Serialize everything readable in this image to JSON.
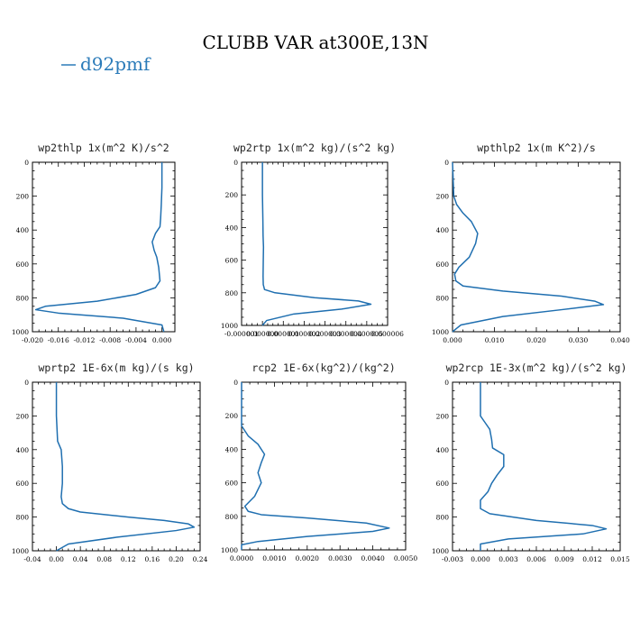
{
  "figure": {
    "title": "CLUBB VAR at300E,13N",
    "legend": [
      {
        "name": "d92pmf",
        "color": "#2b7bb9"
      }
    ]
  },
  "chart_data": [
    {
      "type": "line",
      "title": "wp2thlp   1x(m^2 K)/s^2",
      "xlim": [
        -0.02,
        0.002
      ],
      "ylim": [
        1000,
        0
      ],
      "xticks": [
        -0.02,
        -0.016,
        -0.012,
        -0.008,
        -0.004,
        0.0
      ],
      "xtick_labels": [
        "-0.020",
        "-0.016",
        "-0.012",
        "-0.008",
        "-0.004",
        "0.000"
      ],
      "yticks": [
        0,
        200,
        400,
        600,
        800,
        1000
      ],
      "ytick_labels": [
        "0",
        "200",
        "400",
        "600",
        "800",
        "1000"
      ],
      "series": [
        {
          "name": "d92pmf",
          "x": [
            0.0,
            0.0,
            -0.0001,
            -0.0002,
            -0.0003,
            -0.001,
            -0.0015,
            -0.0012,
            -0.0008,
            -0.0005,
            -0.0003,
            -0.001,
            -0.004,
            -0.01,
            -0.018,
            -0.0195,
            -0.016,
            -0.006,
            0.0,
            0.0003
          ],
          "y": [
            0,
            150,
            250,
            330,
            380,
            420,
            470,
            520,
            560,
            620,
            700,
            740,
            780,
            820,
            850,
            870,
            890,
            920,
            960,
            1000
          ]
        }
      ]
    },
    {
      "type": "line",
      "title": "wp2rtp   1x(m^2 kg)/(s^2 kg)",
      "xlim": [
        -1e-06,
        6e-06
      ],
      "ylim": [
        1000,
        0
      ],
      "xticks": [
        -1e-06,
        0.0,
        1e-06,
        2e-06,
        3e-06,
        4e-06,
        5e-06,
        6e-06
      ],
      "xtick_labels": [
        "-0.000001",
        "0.000000",
        "0.000001",
        "0.000002",
        "0.000003",
        "0.000004",
        "0.000005",
        "0.000006"
      ],
      "yticks": [
        0,
        200,
        400,
        600,
        800,
        1000
      ],
      "ytick_labels": [
        "0",
        "200",
        "400",
        "600",
        "800",
        "1000"
      ],
      "series": [
        {
          "name": "d92pmf",
          "x": [
            0.0,
            0.0,
            2e-08,
            3e-08,
            5e-08,
            4e-08,
            3e-08,
            4e-08,
            1e-07,
            6e-07,
            2.5e-06,
            4.6e-06,
            5.2e-06,
            3.8e-06,
            1.5e-06,
            2e-07,
            0.0
          ],
          "y": [
            0,
            200,
            350,
            450,
            520,
            600,
            700,
            750,
            780,
            800,
            830,
            850,
            870,
            900,
            930,
            970,
            1000
          ]
        }
      ]
    },
    {
      "type": "line",
      "title": "wpthlp2   1x(m K^2)/s",
      "xlim": [
        0.0,
        0.04
      ],
      "ylim": [
        1000,
        0
      ],
      "xticks": [
        0.0,
        0.01,
        0.02,
        0.03,
        0.04
      ],
      "xtick_labels": [
        "0.000",
        "0.010",
        "0.020",
        "0.030",
        "0.040"
      ],
      "yticks": [
        0,
        200,
        400,
        600,
        800,
        1000
      ],
      "ytick_labels": [
        "0",
        "200",
        "400",
        "600",
        "800",
        "1000"
      ],
      "series": [
        {
          "name": "d92pmf",
          "x": [
            0.0,
            0.0003,
            0.001,
            0.0025,
            0.0045,
            0.006,
            0.0055,
            0.004,
            0.0015,
            0.0005,
            0.0008,
            0.0025,
            0.012,
            0.026,
            0.034,
            0.036,
            0.026,
            0.012,
            0.002,
            0.0
          ],
          "y": [
            0,
            200,
            250,
            300,
            350,
            420,
            480,
            560,
            620,
            660,
            700,
            730,
            760,
            790,
            820,
            840,
            870,
            910,
            960,
            1000
          ]
        }
      ]
    },
    {
      "type": "line",
      "title": "wprtp2   1E-6x(m kg)/(s kg)",
      "xlim": [
        -0.04,
        0.24
      ],
      "ylim": [
        1000,
        0
      ],
      "xticks": [
        -0.04,
        0.0,
        0.04,
        0.08,
        0.12,
        0.16,
        0.2,
        0.24
      ],
      "xtick_labels": [
        "-0.04",
        "0.00",
        "0.04",
        "0.08",
        "0.12",
        "0.16",
        "0.20",
        "0.24"
      ],
      "yticks": [
        0,
        200,
        400,
        600,
        800,
        1000
      ],
      "ytick_labels": [
        "0",
        "200",
        "400",
        "600",
        "800",
        "1000"
      ],
      "series": [
        {
          "name": "d92pmf",
          "x": [
            0.0,
            0.0,
            0.002,
            0.008,
            0.01,
            0.01,
            0.008,
            0.01,
            0.02,
            0.04,
            0.12,
            0.18,
            0.22,
            0.23,
            0.2,
            0.1,
            0.02,
            0.0
          ],
          "y": [
            0,
            200,
            350,
            400,
            500,
            600,
            680,
            720,
            750,
            770,
            800,
            820,
            840,
            860,
            880,
            920,
            960,
            1000
          ]
        }
      ]
    },
    {
      "type": "line",
      "title": "rcp2   1E-6x(kg^2)/(kg^2)",
      "xlim": [
        0.0,
        0.005
      ],
      "ylim": [
        1000,
        0
      ],
      "xticks": [
        0.0,
        0.001,
        0.002,
        0.003,
        0.004,
        0.005
      ],
      "xtick_labels": [
        "0.0000",
        "0.0010",
        "0.0020",
        "0.0030",
        "0.0040",
        "0.0050"
      ],
      "yticks": [
        0,
        200,
        400,
        600,
        800,
        1000
      ],
      "ytick_labels": [
        "0",
        "200",
        "400",
        "600",
        "800",
        "1000"
      ],
      "series": [
        {
          "name": "d92pmf",
          "x": [
            0.0,
            0.0,
            0.0002,
            0.0005,
            0.0007,
            0.0006,
            0.0005,
            0.0006,
            0.0004,
            0.0001,
            0.0002,
            0.0006,
            0.002,
            0.0038,
            0.0045,
            0.004,
            0.002,
            0.0005,
            0.0,
            0.0
          ],
          "y": [
            0,
            260,
            320,
            370,
            430,
            480,
            540,
            600,
            680,
            740,
            770,
            790,
            810,
            840,
            870,
            890,
            920,
            950,
            970,
            1000
          ]
        }
      ]
    },
    {
      "type": "line",
      "title": "wp2rcp   1E-3x(m^2 kg)/(s^2 kg)",
      "xlim": [
        -0.003,
        0.015
      ],
      "ylim": [
        1000,
        0
      ],
      "xticks": [
        -0.003,
        0.0,
        0.003,
        0.006,
        0.009,
        0.012,
        0.015
      ],
      "xtick_labels": [
        "-0.003",
        "0.000",
        "0.003",
        "0.006",
        "0.009",
        "0.012",
        "0.015"
      ],
      "yticks": [
        0,
        200,
        400,
        600,
        800,
        1000
      ],
      "ytick_labels": [
        "0",
        "200",
        "400",
        "600",
        "800",
        "1000"
      ],
      "series": [
        {
          "name": "d92pmf",
          "x": [
            0.0,
            0.0,
            0.0005,
            0.001,
            0.0012,
            0.0013,
            0.0025,
            0.0025,
            0.0018,
            0.0012,
            0.0008,
            0.0,
            0.0,
            0.001,
            0.006,
            0.012,
            0.0135,
            0.011,
            0.003,
            0.0,
            0.0
          ],
          "y": [
            0,
            200,
            240,
            280,
            340,
            390,
            430,
            500,
            550,
            600,
            650,
            700,
            750,
            780,
            820,
            850,
            870,
            900,
            930,
            960,
            1000
          ]
        }
      ]
    }
  ]
}
